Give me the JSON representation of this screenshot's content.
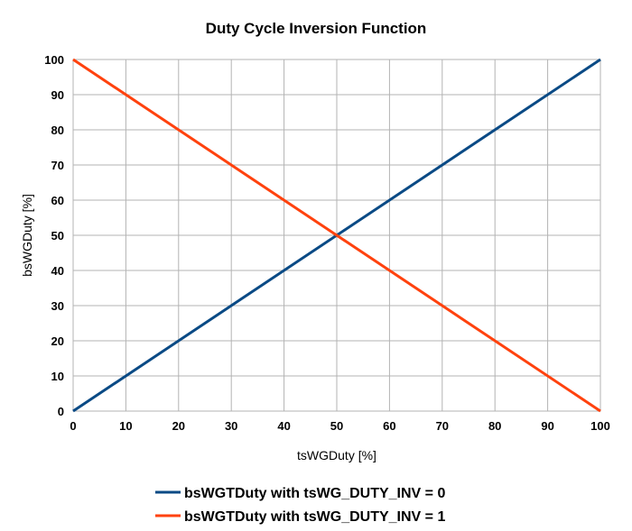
{
  "chart_data": {
    "type": "line",
    "title": "Duty Cycle Inversion Function",
    "xlabel": "tsWGDuty [%]",
    "ylabel": "bsWGDuty [%]",
    "xlim": [
      0,
      100
    ],
    "ylim": [
      0,
      100
    ],
    "x_ticks": [
      "0",
      "10",
      "20",
      "30",
      "40",
      "50",
      "60",
      "70",
      "80",
      "90",
      "100"
    ],
    "y_ticks": [
      "0",
      "10",
      "20",
      "30",
      "40",
      "50",
      "60",
      "70",
      "80",
      "90",
      "100"
    ],
    "grid": true,
    "legend_position": "bottom",
    "series": [
      {
        "name": "bsWGTDuty with tsWG_DUTY_INV = 0",
        "color": "#0a4a85",
        "x": [
          0,
          100
        ],
        "y": [
          0,
          100
        ]
      },
      {
        "name": "bsWGTDuty with tsWG_DUTY_INV = 1",
        "color": "#ff420e",
        "x": [
          0,
          100
        ],
        "y": [
          100,
          0
        ]
      }
    ]
  }
}
